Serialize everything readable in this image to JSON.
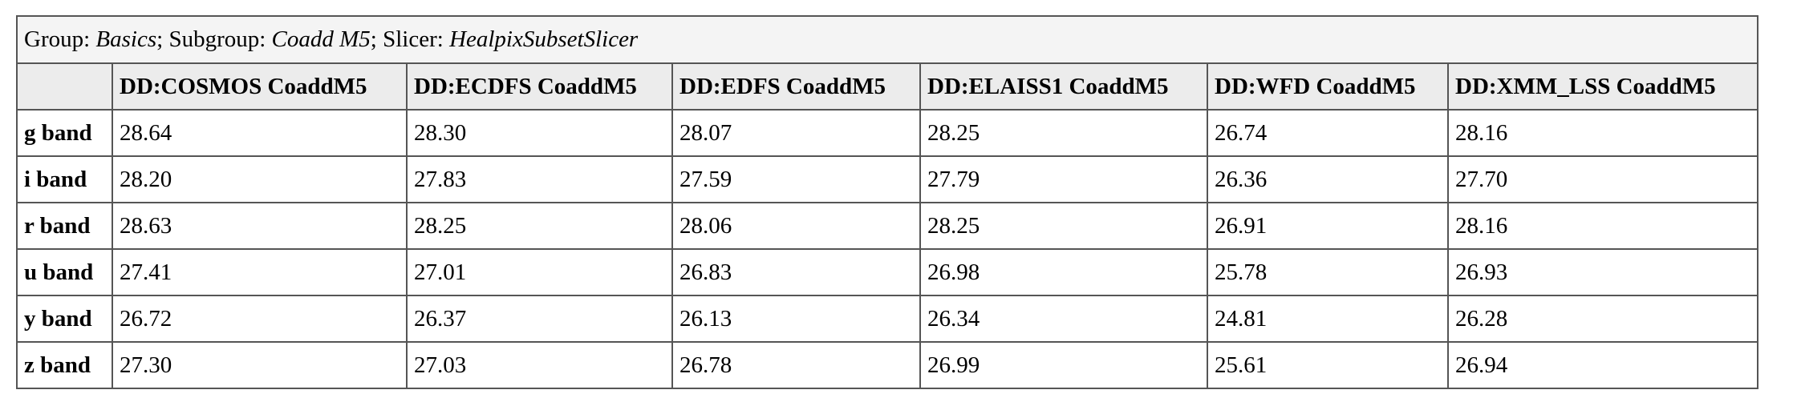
{
  "caption": {
    "group_label": "Group:",
    "group": "Basics",
    "subgroup_label": "; Subgroup:",
    "subgroup": "Coadd M5",
    "slicer_label": "; Slicer:",
    "slicer": "HealpixSubsetSlicer"
  },
  "table": {
    "columns": [
      "DD:COSMOS CoaddM5",
      "DD:ECDFS CoaddM5",
      "DD:EDFS CoaddM5",
      "DD:ELAISS1 CoaddM5",
      "DD:WFD CoaddM5",
      "DD:XMM_LSS CoaddM5"
    ],
    "rows": [
      [
        "g band",
        "28.64",
        "28.30",
        "28.07",
        "28.25",
        "26.74",
        "28.16"
      ],
      [
        "i band",
        "28.20",
        "27.83",
        "27.59",
        "27.79",
        "26.36",
        "27.70"
      ],
      [
        "r band",
        "28.63",
        "28.25",
        "28.06",
        "28.25",
        "26.91",
        "28.16"
      ],
      [
        "u band",
        "27.41",
        "27.01",
        "26.83",
        "26.98",
        "25.78",
        "26.93"
      ],
      [
        "y band",
        "26.72",
        "26.37",
        "26.13",
        "26.34",
        "24.81",
        "26.28"
      ],
      [
        "z band",
        "27.30",
        "27.03",
        "26.78",
        "26.99",
        "25.61",
        "26.94"
      ]
    ]
  }
}
